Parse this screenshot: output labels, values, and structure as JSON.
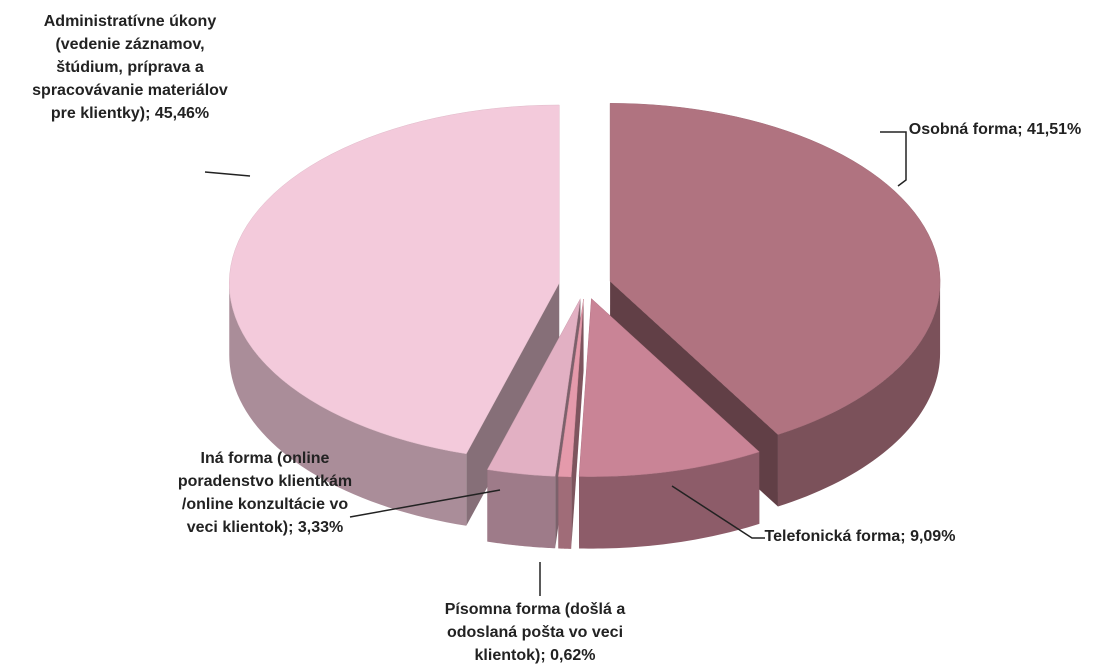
{
  "chart_data": {
    "type": "pie",
    "values": [
      41.51,
      9.09,
      0.62,
      3.33,
      45.46
    ],
    "value_labels": [
      "Osobná forma; 41,51%",
      "Telefonická forma; 9,09%",
      "Písomna forma (došlá a odoslaná pošta vo veci klientok); 0,62%",
      "Iná forma (online poradenstvo klientkám /online konzultácie vo veci klientok); 3,33%",
      "Administratívne úkony (vedenie záznamov, štúdium, príprava a spracovávanie materiálov pre klientky); 45,46%"
    ],
    "colors": [
      "#b07380",
      "#c98496",
      "#e59aab",
      "#e2b0c3",
      "#f3cadb"
    ]
  }
}
